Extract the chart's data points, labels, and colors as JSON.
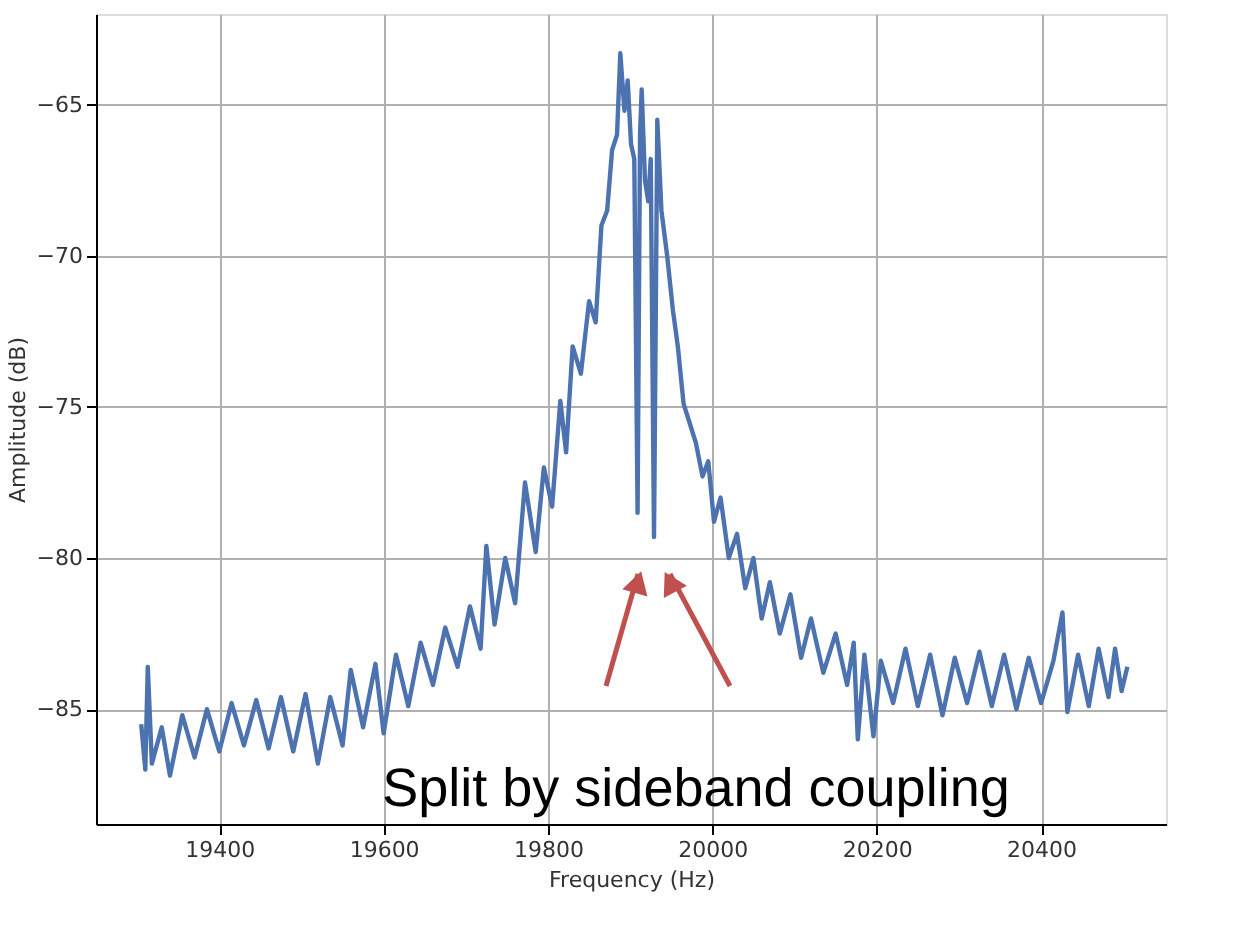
{
  "chart_data": {
    "type": "line",
    "xlabel": "Frequency (Hz)",
    "ylabel": "Amplitude (dB)",
    "xlim": [
      19250,
      20552
    ],
    "ylim": [
      -88.8,
      -62.0
    ],
    "xticks": [
      19400,
      19600,
      19800,
      20000,
      20200,
      20400
    ],
    "yticks": [
      -85,
      -80,
      -75,
      -70,
      -65
    ],
    "grid": true,
    "marker": "none",
    "line_style": "solid",
    "annotations": [
      "Split by sideband coupling"
    ],
    "series": [
      {
        "color": "#4c72b0",
        "x": [
          19305,
          19310,
          19313,
          19318,
          19330,
          19340,
          19355,
          19370,
          19385,
          19400,
          19415,
          19430,
          19445,
          19460,
          19475,
          19490,
          19505,
          19520,
          19535,
          19550,
          19560,
          19575,
          19590,
          19600,
          19615,
          19630,
          19645,
          19660,
          19675,
          19690,
          19705,
          19718,
          19725,
          19735,
          19748,
          19760,
          19772,
          19785,
          19795,
          19805,
          19815,
          19822,
          19830,
          19840,
          19850,
          19858,
          19865,
          19872,
          19878,
          19884,
          19888,
          19893,
          19897,
          19901,
          19905,
          19909,
          19912,
          19914,
          19918,
          19922,
          19925,
          19929,
          19933,
          19938,
          19945,
          19952,
          19958,
          19965,
          19972,
          19980,
          19988,
          19995,
          20002,
          20010,
          20020,
          20030,
          20040,
          20050,
          20060,
          20070,
          20082,
          20095,
          20108,
          20120,
          20135,
          20150,
          20164,
          20172,
          20177,
          20185,
          20196,
          20205,
          20220,
          20235,
          20250,
          20265,
          20280,
          20295,
          20310,
          20325,
          20340,
          20355,
          20370,
          20385,
          20400,
          20415,
          20426,
          20432,
          20445,
          20458,
          20470,
          20482,
          20490,
          20498,
          20505
        ],
        "values": [
          -85.5,
          -87.0,
          -83.6,
          -86.8,
          -85.6,
          -87.2,
          -85.2,
          -86.6,
          -85.0,
          -86.4,
          -84.8,
          -86.2,
          -84.7,
          -86.3,
          -84.6,
          -86.4,
          -84.5,
          -86.8,
          -84.6,
          -86.2,
          -83.7,
          -85.6,
          -83.5,
          -85.8,
          -83.2,
          -84.9,
          -82.8,
          -84.2,
          -82.3,
          -83.6,
          -81.6,
          -83.0,
          -79.6,
          -82.2,
          -80.0,
          -81.5,
          -77.5,
          -79.8,
          -77.0,
          -78.3,
          -74.8,
          -76.5,
          -73.0,
          -73.9,
          -71.5,
          -72.2,
          -69.0,
          -68.5,
          -66.5,
          -66.0,
          -63.3,
          -65.2,
          -64.2,
          -66.3,
          -66.8,
          -78.5,
          -66.0,
          -64.5,
          -67.5,
          -68.2,
          -66.8,
          -79.3,
          -65.5,
          -68.5,
          -70.0,
          -71.8,
          -73.0,
          -74.9,
          -75.5,
          -76.2,
          -77.3,
          -76.8,
          -78.8,
          -78.0,
          -80.0,
          -79.2,
          -81.0,
          -80.0,
          -82.0,
          -80.8,
          -82.5,
          -81.2,
          -83.3,
          -82.0,
          -83.8,
          -82.5,
          -84.2,
          -82.8,
          -86.0,
          -83.2,
          -85.9,
          -83.4,
          -84.8,
          -83.0,
          -84.9,
          -83.2,
          -85.2,
          -83.3,
          -84.8,
          -83.1,
          -84.9,
          -83.2,
          -85.0,
          -83.3,
          -84.8,
          -83.4,
          -81.8,
          -85.1,
          -83.2,
          -84.9,
          -83.0,
          -84.6,
          -83.0,
          -84.4,
          -83.6
        ]
      }
    ]
  }
}
